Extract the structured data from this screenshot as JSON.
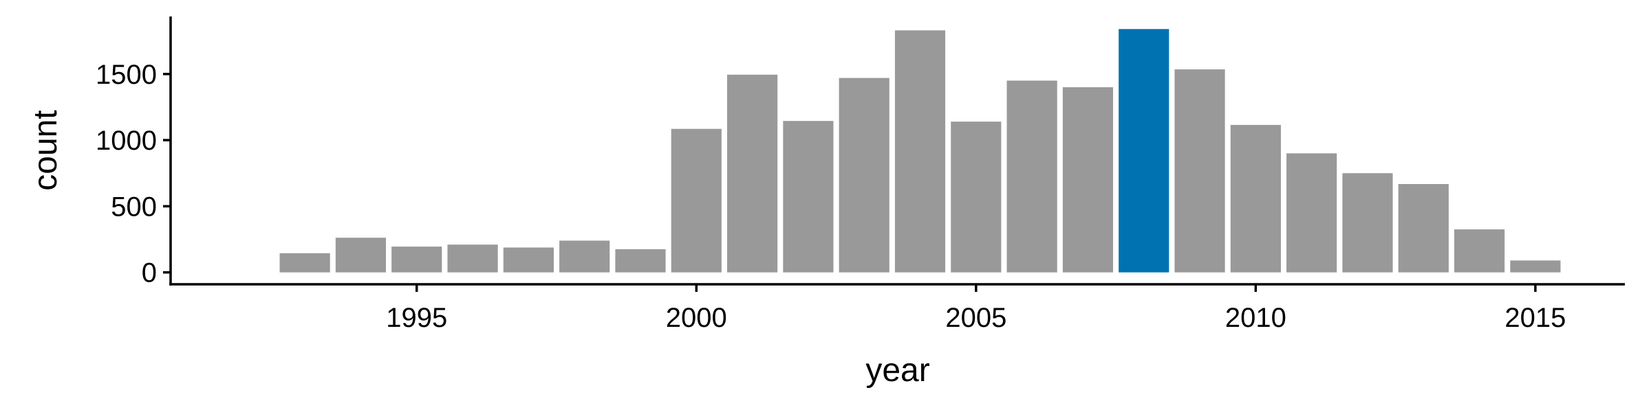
{
  "chart_data": {
    "type": "bar",
    "xlabel": "year",
    "ylabel": "count",
    "x": [
      1993,
      1994,
      1995,
      1996,
      1997,
      1998,
      1999,
      2000,
      2001,
      2002,
      2003,
      2004,
      2005,
      2006,
      2007,
      2008,
      2009,
      2010,
      2011,
      2012,
      2013,
      2014,
      2015
    ],
    "values": [
      145,
      262,
      195,
      210,
      188,
      240,
      175,
      1085,
      1495,
      1145,
      1470,
      1830,
      1140,
      1450,
      1400,
      1840,
      1535,
      1115,
      900,
      750,
      668,
      325,
      90
    ],
    "xlim": [
      1990.6,
      1992.1
    ],
    "x_range": [
      1990.6,
      2016.6
    ],
    "ylim": [
      -90,
      1935
    ],
    "xticks": [
      1995,
      2000,
      2005,
      2010,
      2015
    ],
    "xtick_labels": [
      "1995",
      "2000",
      "2005",
      "2010",
      "2015"
    ],
    "yticks": [
      0,
      500,
      1000,
      1500
    ],
    "ytick_labels": [
      "0",
      "500",
      "1000",
      "1500"
    ],
    "grid": false,
    "legend": "none",
    "highlight_year": 2008,
    "colors": {
      "bar": "#999999",
      "highlight": "#0072B2",
      "axis": "#000000"
    }
  }
}
